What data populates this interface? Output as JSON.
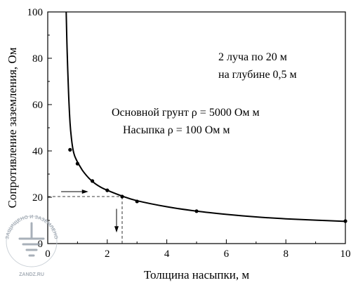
{
  "chart_data": {
    "type": "scatter",
    "title": "",
    "xlabel": "Толщина насыпки,  м",
    "ylabel": "Сопротивление заземления,  Ом",
    "xlim": [
      0,
      10
    ],
    "ylim": [
      0,
      100
    ],
    "xticks": [
      "0",
      "2",
      "4",
      "6",
      "8",
      "10"
    ],
    "yticks": [
      "0",
      "20",
      "40",
      "60",
      "80",
      "100"
    ],
    "grid": false,
    "series": [
      {
        "kind": "points",
        "x": [
          0.75,
          1.0,
          1.5,
          2.0,
          2.5,
          3.0,
          5.0,
          10.0
        ],
        "y": [
          40.5,
          34.5,
          27.0,
          23.0,
          20.3,
          18.2,
          14.0,
          9.7
        ]
      },
      {
        "kind": "fit-curve",
        "x": [
          0.62,
          0.65,
          0.7,
          0.75,
          0.8,
          0.85,
          0.9,
          0.95,
          1.0,
          1.1,
          1.2,
          1.4,
          1.6,
          1.8,
          2.0,
          2.5,
          3.0,
          4.0,
          5.0,
          6.0,
          7.0,
          8.0,
          9.0,
          10.0
        ],
        "y": [
          100,
          84,
          65,
          52,
          45,
          40.5,
          38,
          36.5,
          35.2,
          33,
          31,
          28,
          25.8,
          24.2,
          23,
          20.5,
          18.5,
          15.9,
          14,
          12.6,
          11.5,
          10.7,
          10.1,
          9.6
        ]
      }
    ],
    "reference": {
      "x": 2.5,
      "y": 20.3
    },
    "annotations": {
      "beams_line1": "2 луча по 20 м",
      "beams_line2": "на глубине 0,5 м",
      "soil_line1": "Основной грунт ρ = 5000 Ом м",
      "soil_line2": "Насыпка ρ = 100 Ом м"
    }
  },
  "watermark": {
    "top_text": "ЗАЩИЩЕНО И ЗАЗЕМЛЕНО",
    "bottom_text": "ZANDZ.RU",
    "icon": "ground-symbol-icon"
  }
}
